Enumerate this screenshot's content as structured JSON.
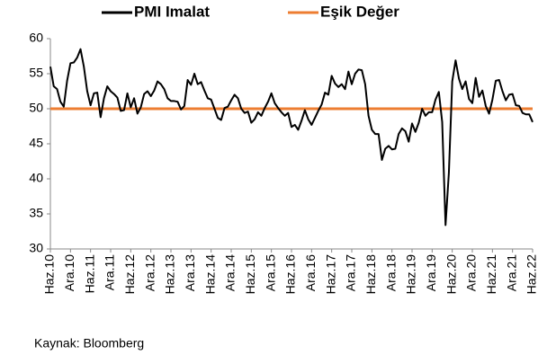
{
  "chart_data": {
    "type": "line",
    "categories": [
      "Haz.10",
      null,
      null,
      null,
      null,
      null,
      "Ara.10",
      null,
      null,
      null,
      null,
      null,
      "Haz.11",
      null,
      null,
      null,
      null,
      null,
      "Ara.11",
      null,
      null,
      null,
      null,
      null,
      "Haz.12",
      null,
      null,
      null,
      null,
      null,
      "Ara.12",
      null,
      null,
      null,
      null,
      null,
      "Haz.13",
      null,
      null,
      null,
      null,
      null,
      "Ara.13",
      null,
      null,
      null,
      null,
      null,
      "Haz.14",
      null,
      null,
      null,
      null,
      null,
      "Ara.14",
      null,
      null,
      null,
      null,
      null,
      "Haz.15",
      null,
      null,
      null,
      null,
      null,
      "Ara.15",
      null,
      null,
      null,
      null,
      null,
      "Haz.16",
      null,
      null,
      null,
      null,
      null,
      "Ara.16",
      null,
      null,
      null,
      null,
      null,
      "Haz.17",
      null,
      null,
      null,
      null,
      null,
      "Ara.17",
      null,
      null,
      null,
      null,
      null,
      "Haz.18",
      null,
      null,
      null,
      null,
      null,
      "Ara.18",
      null,
      null,
      null,
      null,
      null,
      "Haz.19",
      null,
      null,
      null,
      null,
      null,
      "Ara.19",
      null,
      null,
      null,
      null,
      null,
      "Haz.20",
      null,
      null,
      null,
      null,
      null,
      "Ara.20",
      null,
      null,
      null,
      null,
      null,
      "Haz.21",
      null,
      null,
      null,
      null,
      null,
      "Ara.21",
      null,
      null,
      null,
      null,
      null,
      "Haz.22"
    ],
    "series": [
      {
        "name": "PMI Imalat",
        "color": "#000000",
        "values": [
          56.0,
          53.2,
          52.8,
          51.0,
          50.3,
          54.0,
          56.5,
          56.6,
          57.3,
          58.5,
          56.0,
          52.5,
          50.5,
          52.2,
          52.3,
          48.8,
          51.5,
          53.2,
          52.5,
          52.1,
          51.6,
          49.7,
          49.8,
          52.2,
          50.2,
          51.5,
          49.3,
          50.2,
          52.1,
          52.5,
          51.8,
          52.6,
          53.9,
          53.5,
          52.8,
          51.5,
          51.1,
          51.1,
          51.0,
          49.9,
          50.4,
          54.1,
          53.4,
          55.0,
          53.5,
          53.8,
          52.6,
          51.5,
          51.3,
          50.0,
          48.7,
          48.4,
          50.1,
          50.3,
          51.2,
          52.0,
          51.5,
          50.0,
          49.4,
          49.6,
          48.0,
          48.5,
          49.5,
          49.0,
          50.1,
          51.0,
          52.2,
          50.8,
          50.1,
          49.5,
          49.0,
          49.4,
          47.4,
          47.7,
          47.0,
          48.3,
          49.8,
          48.5,
          47.7,
          48.7,
          49.7,
          50.6,
          52.3,
          52.0,
          54.7,
          53.6,
          53.1,
          53.5,
          52.8,
          55.3,
          53.5,
          55.0,
          55.6,
          55.5,
          53.5,
          49.0,
          47.0,
          46.4,
          46.4,
          42.7,
          44.3,
          44.7,
          44.2,
          44.3,
          46.4,
          47.2,
          46.8,
          45.3,
          47.9,
          46.7,
          48.0,
          50.0,
          49.0,
          49.5,
          49.5,
          51.3,
          52.4,
          48.1,
          33.4,
          40.9,
          53.9,
          56.9,
          54.3,
          52.8,
          53.9,
          51.4,
          50.8,
          54.4,
          51.7,
          52.6,
          50.4,
          49.3,
          51.3,
          54.0,
          54.1,
          52.5,
          51.2,
          52.0,
          52.1,
          50.5,
          50.4,
          49.4,
          49.2,
          49.2,
          48.1
        ]
      },
      {
        "name": "Eşik Değer",
        "color": "#ed7d31",
        "values": [
          50,
          50,
          50,
          50,
          50,
          50,
          50,
          50,
          50,
          50,
          50,
          50,
          50,
          50,
          50,
          50,
          50,
          50,
          50,
          50,
          50,
          50,
          50,
          50,
          50,
          50,
          50,
          50,
          50,
          50,
          50,
          50,
          50,
          50,
          50,
          50,
          50,
          50,
          50,
          50,
          50,
          50,
          50,
          50,
          50,
          50,
          50,
          50,
          50,
          50,
          50,
          50,
          50,
          50,
          50,
          50,
          50,
          50,
          50,
          50,
          50,
          50,
          50,
          50,
          50,
          50,
          50,
          50,
          50,
          50,
          50,
          50,
          50,
          50,
          50,
          50,
          50,
          50,
          50,
          50,
          50,
          50,
          50,
          50,
          50,
          50,
          50,
          50,
          50,
          50,
          50,
          50,
          50,
          50,
          50,
          50,
          50,
          50,
          50,
          50,
          50,
          50,
          50,
          50,
          50,
          50,
          50,
          50,
          50,
          50,
          50,
          50,
          50,
          50,
          50,
          50,
          50,
          50,
          50,
          50,
          50,
          50,
          50,
          50,
          50,
          50,
          50,
          50,
          50,
          50,
          50,
          50,
          50,
          50,
          50,
          50,
          50,
          50,
          50,
          50,
          50,
          50,
          50,
          50,
          50
        ]
      }
    ],
    "ylim": [
      30,
      60
    ],
    "yticks": [
      30,
      35,
      40,
      45,
      50,
      55,
      60
    ],
    "legend": "top",
    "source": "Kaynak: Bloomberg"
  }
}
